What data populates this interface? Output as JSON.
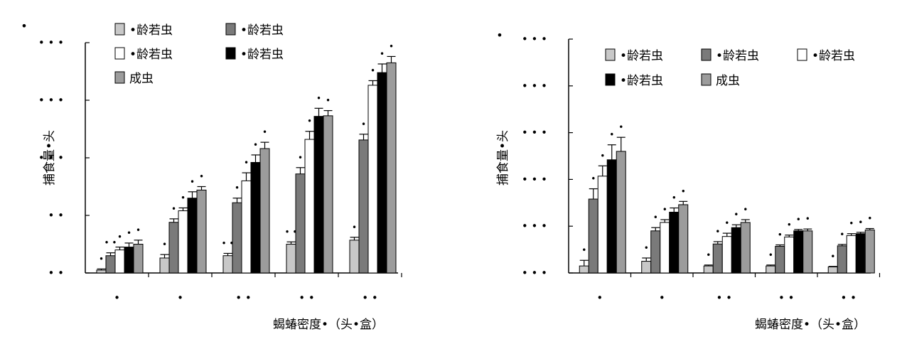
{
  "styles": {
    "bar_colors": [
      "#c8c8c8",
      "#7a7a7a",
      "#ffffff",
      "#000000",
      "#9c9c9c"
    ],
    "axis_color": "#000000"
  },
  "chart_data": [
    {
      "type": "bar",
      "panel_mark": "•",
      "ylabel": "捕食量•头",
      "xlabel": "蝎蝽密度•（头•盒）",
      "ytick_labels": [
        "• •",
        "• •",
        "• • •",
        "• • •",
        "• • •"
      ],
      "ylim": [
        0,
        4
      ],
      "categories": [
        "•",
        "•",
        "• •",
        "• •",
        "• •"
      ],
      "legend_layout": "two-column",
      "series": [
        {
          "name": "•龄若虫",
          "values": [
            0.05,
            0.26,
            0.3,
            0.5,
            0.57
          ],
          "errors": [
            0.02,
            0.06,
            0.04,
            0.04,
            0.05
          ],
          "sig": [
            "•",
            "•",
            "• •",
            "• •",
            "•"
          ]
        },
        {
          "name": "•龄若虫",
          "values": [
            0.3,
            0.88,
            1.22,
            1.72,
            2.31
          ],
          "errors": [
            0.05,
            0.06,
            0.08,
            0.11,
            0.1
          ],
          "sig": [
            "• •",
            "•",
            "•",
            "•",
            "•"
          ]
        },
        {
          "name": "•龄若虫",
          "values": [
            0.4,
            1.08,
            1.6,
            2.32,
            3.26
          ],
          "errors": [
            0.05,
            0.05,
            0.14,
            0.14,
            0.08
          ],
          "sig": [
            "•",
            "•",
            "•",
            "•",
            "•"
          ]
        },
        {
          "name": "•龄若虫",
          "values": [
            0.45,
            1.3,
            1.92,
            2.72,
            3.48
          ],
          "errors": [
            0.07,
            0.11,
            0.13,
            0.14,
            0.15
          ],
          "sig": [
            "•",
            "•",
            "•",
            "•",
            "•"
          ]
        },
        {
          "name": "成虫",
          "values": [
            0.5,
            1.44,
            2.16,
            2.73,
            3.65
          ],
          "errors": [
            0.07,
            0.06,
            0.11,
            0.09,
            0.11
          ],
          "sig": [
            "•",
            "•",
            "•",
            "•",
            "•"
          ]
        }
      ]
    },
    {
      "type": "bar",
      "panel_mark": "•",
      "ylabel": "捕食量•头",
      "xlabel": "蝎蝽密度•（头•盒）",
      "ytick_labels": [
        "• • •",
        "• • •",
        "• • •",
        "• • •",
        "• • •",
        "• • •"
      ],
      "ylim": [
        0,
        5
      ],
      "categories": [
        "•",
        "•",
        "• •",
        "• •",
        "• •"
      ],
      "legend_layout": "three-column",
      "series": [
        {
          "name": "•龄若虫",
          "values": [
            0.15,
            0.25,
            0.15,
            0.15,
            0.13
          ],
          "errors": [
            0.12,
            0.07,
            0.02,
            0.02,
            0.01
          ],
          "sig": [
            "•",
            "•",
            "•",
            "•",
            "•"
          ]
        },
        {
          "name": "•龄若虫",
          "values": [
            1.58,
            0.9,
            0.62,
            0.57,
            0.58
          ],
          "errors": [
            0.22,
            0.07,
            0.05,
            0.03,
            0.03
          ],
          "sig": [
            "•",
            "•",
            "•",
            "•",
            "•"
          ]
        },
        {
          "name": "•龄若虫",
          "values": [
            2.07,
            1.08,
            0.78,
            0.77,
            0.8
          ],
          "errors": [
            0.22,
            0.06,
            0.07,
            0.04,
            0.04
          ],
          "sig": [
            "•",
            "•",
            "•",
            "•",
            "•"
          ]
        },
        {
          "name": "•龄若虫",
          "values": [
            2.42,
            1.3,
            0.97,
            0.9,
            0.84
          ],
          "errors": [
            0.32,
            0.09,
            0.06,
            0.03,
            0.03
          ],
          "sig": [
            "•",
            "•",
            "•",
            "•",
            "•"
          ]
        },
        {
          "name": "成虫",
          "values": [
            2.6,
            1.46,
            1.08,
            0.9,
            0.92
          ],
          "errors": [
            0.3,
            0.07,
            0.06,
            0.04,
            0.03
          ],
          "sig": [
            "•",
            "•",
            "•",
            "•",
            "•"
          ]
        }
      ]
    }
  ]
}
